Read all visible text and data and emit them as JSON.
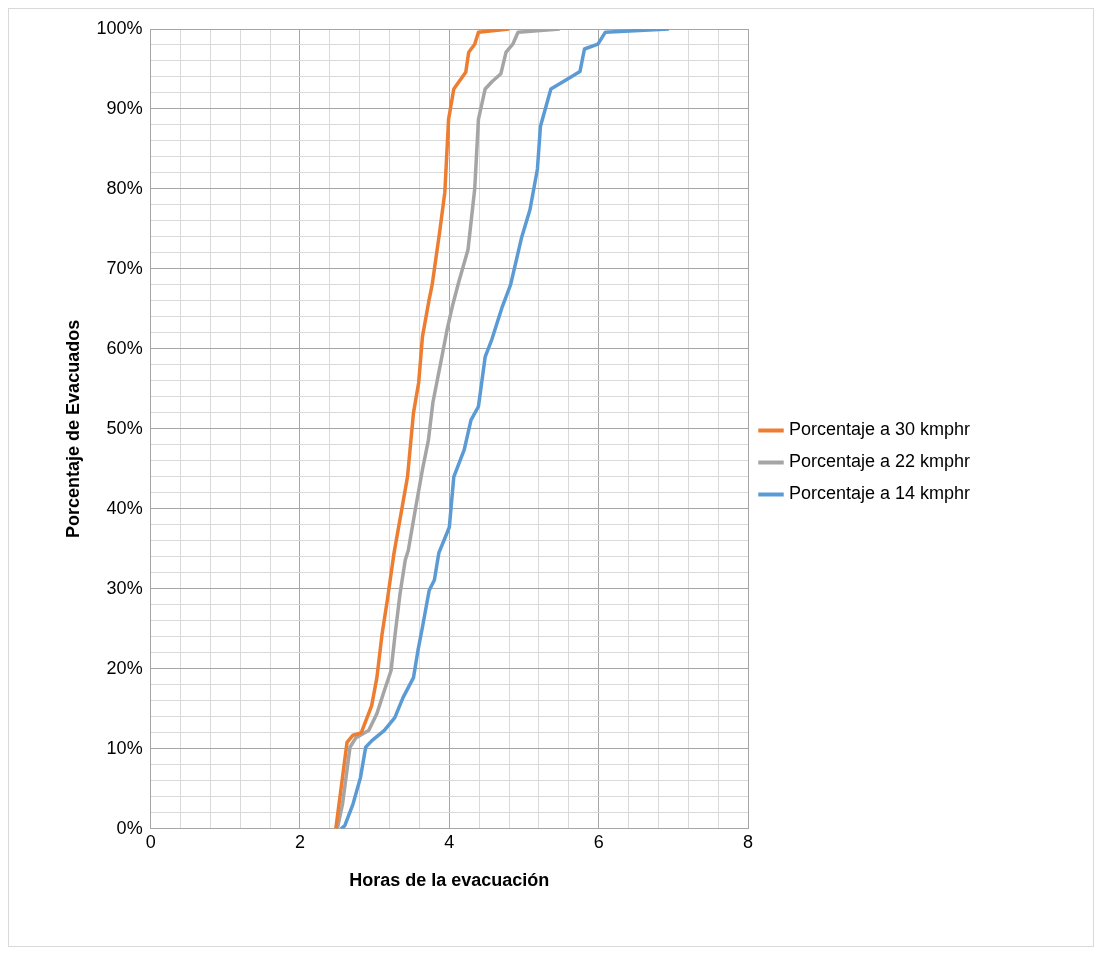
{
  "chart_data": {
    "type": "line",
    "xlabel": "Horas de la evacuación",
    "ylabel": "Porcentaje de Evacuados",
    "xlim": [
      0,
      8
    ],
    "ylim": [
      0,
      100
    ],
    "xticks": [
      0,
      {
        "value": 0.4,
        "label": null
      },
      {
        "value": 0.8,
        "label": null
      },
      {
        "value": 1.2,
        "label": null
      },
      {
        "value": 1.6,
        "label": null
      },
      2,
      {
        "value": 2.4,
        "label": null
      },
      {
        "value": 2.8,
        "label": null
      },
      {
        "value": 3.2,
        "label": null
      },
      {
        "value": 3.6,
        "label": null
      },
      4,
      {
        "value": 4.4,
        "label": null
      },
      {
        "value": 4.8,
        "label": null
      },
      {
        "value": 5.2,
        "label": null
      },
      {
        "value": 5.6,
        "label": null
      },
      6,
      {
        "value": 6.4,
        "label": null
      },
      {
        "value": 6.8,
        "label": null
      },
      {
        "value": 7.2,
        "label": null
      },
      {
        "value": 7.6,
        "label": null
      },
      8
    ],
    "yticks": [
      {
        "value": 0,
        "label": "0%"
      },
      {
        "value": 2,
        "label": null
      },
      {
        "value": 4,
        "label": null
      },
      {
        "value": 6,
        "label": null
      },
      {
        "value": 8,
        "label": null
      },
      {
        "value": 10,
        "label": "10%"
      },
      {
        "value": 12,
        "label": null
      },
      {
        "value": 14,
        "label": null
      },
      {
        "value": 16,
        "label": null
      },
      {
        "value": 18,
        "label": null
      },
      {
        "value": 20,
        "label": "20%"
      },
      {
        "value": 22,
        "label": null
      },
      {
        "value": 24,
        "label": null
      },
      {
        "value": 26,
        "label": null
      },
      {
        "value": 28,
        "label": null
      },
      {
        "value": 30,
        "label": "30%"
      },
      {
        "value": 32,
        "label": null
      },
      {
        "value": 34,
        "label": null
      },
      {
        "value": 36,
        "label": null
      },
      {
        "value": 38,
        "label": null
      },
      {
        "value": 40,
        "label": "40%"
      },
      {
        "value": 42,
        "label": null
      },
      {
        "value": 44,
        "label": null
      },
      {
        "value": 46,
        "label": null
      },
      {
        "value": 48,
        "label": null
      },
      {
        "value": 50,
        "label": "50%"
      },
      {
        "value": 52,
        "label": null
      },
      {
        "value": 54,
        "label": null
      },
      {
        "value": 56,
        "label": null
      },
      {
        "value": 58,
        "label": null
      },
      {
        "value": 60,
        "label": "60%"
      },
      {
        "value": 62,
        "label": null
      },
      {
        "value": 64,
        "label": null
      },
      {
        "value": 66,
        "label": null
      },
      {
        "value": 68,
        "label": null
      },
      {
        "value": 70,
        "label": "70%"
      },
      {
        "value": 72,
        "label": null
      },
      {
        "value": 74,
        "label": null
      },
      {
        "value": 76,
        "label": null
      },
      {
        "value": 78,
        "label": null
      },
      {
        "value": 80,
        "label": "80%"
      },
      {
        "value": 82,
        "label": null
      },
      {
        "value": 84,
        "label": null
      },
      {
        "value": 86,
        "label": null
      },
      {
        "value": 88,
        "label": null
      },
      {
        "value": 90,
        "label": "90%"
      },
      {
        "value": 92,
        "label": null
      },
      {
        "value": 94,
        "label": null
      },
      {
        "value": 96,
        "label": null
      },
      {
        "value": 98,
        "label": null
      },
      {
        "value": 100,
        "label": "100%"
      }
    ],
    "grid": true,
    "legend": "right",
    "marker": "none",
    "line_style": "solid",
    "series": [
      {
        "name": "Porcentaje a 30 kmphr",
        "color": "#ed7d31",
        "x": [
          2.48,
          2.63,
          2.71,
          2.82,
          2.96,
          3.03,
          3.1,
          3.17,
          3.26,
          3.44,
          3.52,
          3.59,
          3.64,
          3.73,
          3.77,
          3.87,
          3.94,
          3.99,
          4.06,
          4.15,
          4.22,
          4.26,
          4.34,
          4.39,
          4.8
        ],
        "values": [
          0,
          10.8,
          11.7,
          12,
          15.4,
          18.9,
          24.4,
          28.6,
          34.5,
          44,
          52,
          55.8,
          61.5,
          66.2,
          68,
          74.6,
          79.6,
          88.7,
          92.5,
          93.7,
          94.6,
          97.1,
          98.1,
          99.6,
          100
        ]
      },
      {
        "name": "Porcentaje a 22 kmphr",
        "color": "#a5a5a5",
        "x": [
          2.5,
          2.57,
          2.67,
          2.75,
          2.92,
          3.03,
          3.13,
          3.22,
          3.27,
          3.34,
          3.41,
          3.45,
          3.55,
          3.64,
          3.72,
          3.78,
          3.9,
          3.97,
          4.04,
          4.13,
          4.25,
          4.34,
          4.39,
          4.48,
          4.57,
          4.69,
          4.76,
          4.85,
          4.92,
          5.48
        ],
        "values": [
          0,
          3.1,
          10.2,
          11.4,
          12.3,
          14.4,
          17.3,
          19.8,
          24,
          29.4,
          33.6,
          34.8,
          40.2,
          44.9,
          48.6,
          53.3,
          59,
          62.4,
          65.3,
          68.5,
          72.4,
          80,
          88.7,
          92.5,
          93.4,
          94.4,
          97.1,
          98.1,
          99.6,
          100
        ]
      },
      {
        "name": "Porcentaje a 14 kmphr",
        "color": "#5b9bd5",
        "x": [
          2.55,
          2.6,
          2.71,
          2.81,
          2.88,
          2.96,
          3.13,
          3.27,
          3.38,
          3.52,
          3.58,
          3.64,
          3.73,
          3.8,
          3.86,
          4.0,
          4.06,
          4.2,
          4.29,
          4.39,
          4.48,
          4.57,
          4.71,
          4.82,
          4.97,
          5.08,
          5.18,
          5.22,
          5.36,
          5.54,
          5.75,
          5.81,
          5.99,
          6.09,
          6.94
        ],
        "values": [
          0,
          0.4,
          3.1,
          6.4,
          10.2,
          11,
          12.3,
          13.9,
          16.4,
          18.9,
          22.3,
          25.2,
          29.8,
          31.1,
          34.5,
          37.7,
          44,
          47.4,
          51.1,
          52.8,
          59,
          61.2,
          65.3,
          68,
          74,
          77.4,
          82.5,
          87.8,
          92.5,
          93.5,
          94.7,
          97.5,
          98.1,
          99.6,
          100
        ]
      }
    ]
  }
}
